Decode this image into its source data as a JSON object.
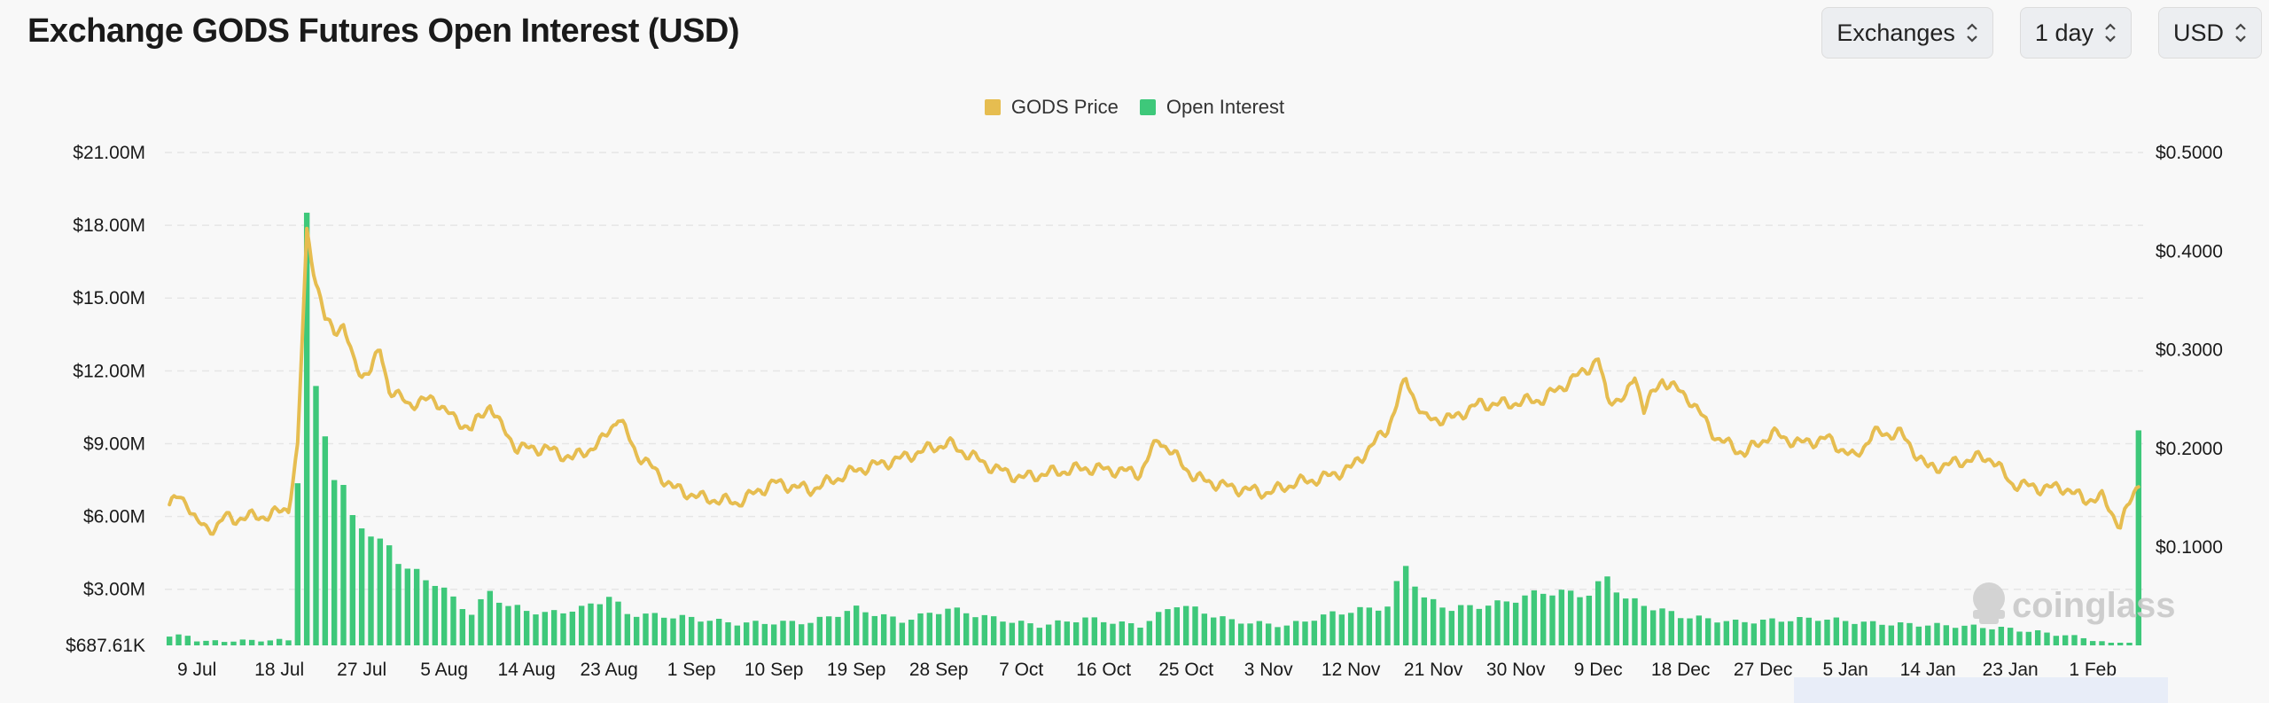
{
  "header": {
    "title": "Exchange GODS Futures Open Interest (USD)",
    "controls": [
      {
        "label": "Exchanges",
        "name": "exchanges-select"
      },
      {
        "label": "1 day",
        "name": "interval-select"
      },
      {
        "label": "USD",
        "name": "currency-select"
      }
    ]
  },
  "watermark": "coinglass",
  "colors": {
    "price": "#e6bd50",
    "oi": "#3ec87a",
    "grid": "#e6e6e6"
  },
  "chart_data": {
    "type": "bar",
    "title": "Exchange GODS Futures Open Interest (USD)",
    "legend": {
      "placement": "top-center"
    },
    "series": [
      {
        "name": "GODS Price",
        "type": "line",
        "axis": "right"
      },
      {
        "name": "Open Interest",
        "type": "bar",
        "axis": "left"
      }
    ],
    "left_axis": {
      "ticks": [
        "$687.61K",
        "$3.00M",
        "$6.00M",
        "$9.00M",
        "$12.00M",
        "$15.00M",
        "$18.00M",
        "$21.00M"
      ],
      "tick_values": [
        687610,
        3000000,
        6000000,
        9000000,
        12000000,
        15000000,
        18000000,
        21000000
      ],
      "ylim": [
        687610,
        21000000
      ]
    },
    "right_axis": {
      "ticks": [
        "$0.1000",
        "$0.2000",
        "$0.3000",
        "$0.4000",
        "$0.5000"
      ],
      "tick_values": [
        0.1,
        0.2,
        0.3,
        0.4,
        0.5
      ],
      "ylim": [
        0.0,
        0.5
      ]
    },
    "x_axis": {
      "ticks": [
        "9 Jul",
        "18 Jul",
        "27 Jul",
        "5 Aug",
        "14 Aug",
        "23 Aug",
        "1 Sep",
        "10 Sep",
        "19 Sep",
        "28 Sep",
        "7 Oct",
        "16 Oct",
        "25 Oct",
        "3 Nov",
        "12 Nov",
        "21 Nov",
        "30 Nov",
        "9 Dec",
        "18 Dec",
        "27 Dec",
        "5 Jan",
        "14 Jan",
        "23 Jan",
        "1 Feb"
      ],
      "tick_days": [
        3,
        12,
        21,
        30,
        39,
        48,
        57,
        66,
        75,
        84,
        93,
        102,
        111,
        120,
        129,
        138,
        147,
        156,
        165,
        174,
        183,
        192,
        201,
        210
      ]
    },
    "open_interest_keypoints": [
      [
        0,
        1.05
      ],
      [
        2,
        1.1
      ],
      [
        3,
        0.9
      ],
      [
        4,
        0.85
      ],
      [
        10,
        0.9
      ],
      [
        13,
        0.9
      ],
      [
        14,
        7.5
      ],
      [
        15,
        18.4
      ],
      [
        16,
        11.2
      ],
      [
        17,
        9.4
      ],
      [
        18,
        7.6
      ],
      [
        19,
        7.2
      ],
      [
        20,
        6.0
      ],
      [
        22,
        5.2
      ],
      [
        24,
        4.8
      ],
      [
        26,
        3.8
      ],
      [
        29,
        3.3
      ],
      [
        31,
        2.6
      ],
      [
        33,
        2.0
      ],
      [
        35,
        2.9
      ],
      [
        37,
        2.3
      ],
      [
        41,
        2.0
      ],
      [
        45,
        2.2
      ],
      [
        48,
        2.7
      ],
      [
        50,
        2.0
      ],
      [
        56,
        1.85
      ],
      [
        62,
        1.6
      ],
      [
        70,
        1.65
      ],
      [
        75,
        2.2
      ],
      [
        80,
        1.7
      ],
      [
        85,
        2.2
      ],
      [
        90,
        1.8
      ],
      [
        95,
        1.5
      ],
      [
        100,
        1.8
      ],
      [
        106,
        1.5
      ],
      [
        110,
        2.4
      ],
      [
        116,
        1.7
      ],
      [
        122,
        1.5
      ],
      [
        127,
        2.0
      ],
      [
        133,
        2.3
      ],
      [
        135,
        4.0
      ],
      [
        137,
        2.6
      ],
      [
        140,
        2.2
      ],
      [
        145,
        2.4
      ],
      [
        150,
        2.9
      ],
      [
        155,
        2.8
      ],
      [
        157,
        3.5
      ],
      [
        159,
        2.6
      ],
      [
        165,
        1.9
      ],
      [
        171,
        1.65
      ],
      [
        180,
        1.8
      ],
      [
        186,
        1.6
      ],
      [
        195,
        1.5
      ],
      [
        200,
        1.4
      ],
      [
        205,
        1.2
      ],
      [
        209,
        1.0
      ],
      [
        212,
        0.75
      ],
      [
        214,
        0.8
      ],
      [
        215,
        9.4
      ]
    ],
    "price_keypoints": [
      [
        0,
        0.143
      ],
      [
        1,
        0.15
      ],
      [
        2,
        0.145
      ],
      [
        3,
        0.125
      ],
      [
        4,
        0.118
      ],
      [
        5,
        0.12
      ],
      [
        6,
        0.13
      ],
      [
        7,
        0.128
      ],
      [
        8,
        0.13
      ],
      [
        11,
        0.132
      ],
      [
        13,
        0.14
      ],
      [
        14,
        0.2
      ],
      [
        15,
        0.42
      ],
      [
        16,
        0.37
      ],
      [
        17,
        0.33
      ],
      [
        18,
        0.32
      ],
      [
        19,
        0.325
      ],
      [
        20,
        0.29
      ],
      [
        21,
        0.275
      ],
      [
        22,
        0.28
      ],
      [
        23,
        0.3
      ],
      [
        24,
        0.26
      ],
      [
        26,
        0.245
      ],
      [
        29,
        0.25
      ],
      [
        31,
        0.23
      ],
      [
        33,
        0.22
      ],
      [
        35,
        0.245
      ],
      [
        36,
        0.225
      ],
      [
        38,
        0.2
      ],
      [
        41,
        0.2
      ],
      [
        44,
        0.19
      ],
      [
        47,
        0.205
      ],
      [
        49,
        0.232
      ],
      [
        51,
        0.195
      ],
      [
        55,
        0.16
      ],
      [
        58,
        0.15
      ],
      [
        62,
        0.145
      ],
      [
        66,
        0.165
      ],
      [
        70,
        0.158
      ],
      [
        73,
        0.17
      ],
      [
        75,
        0.178
      ],
      [
        78,
        0.185
      ],
      [
        80,
        0.19
      ],
      [
        83,
        0.2
      ],
      [
        85,
        0.205
      ],
      [
        90,
        0.18
      ],
      [
        93,
        0.17
      ],
      [
        96,
        0.175
      ],
      [
        100,
        0.18
      ],
      [
        103,
        0.178
      ],
      [
        106,
        0.175
      ],
      [
        108,
        0.21
      ],
      [
        112,
        0.17
      ],
      [
        116,
        0.16
      ],
      [
        120,
        0.155
      ],
      [
        123,
        0.165
      ],
      [
        126,
        0.17
      ],
      [
        129,
        0.18
      ],
      [
        131,
        0.2
      ],
      [
        133,
        0.22
      ],
      [
        135,
        0.27
      ],
      [
        137,
        0.23
      ],
      [
        140,
        0.23
      ],
      [
        143,
        0.245
      ],
      [
        146,
        0.245
      ],
      [
        150,
        0.25
      ],
      [
        154,
        0.275
      ],
      [
        156,
        0.29
      ],
      [
        157,
        0.25
      ],
      [
        159,
        0.25
      ],
      [
        160,
        0.275
      ],
      [
        161,
        0.24
      ],
      [
        163,
        0.27
      ],
      [
        166,
        0.25
      ],
      [
        169,
        0.21
      ],
      [
        172,
        0.195
      ],
      [
        175,
        0.215
      ],
      [
        178,
        0.205
      ],
      [
        181,
        0.21
      ],
      [
        184,
        0.19
      ],
      [
        186,
        0.215
      ],
      [
        189,
        0.215
      ],
      [
        192,
        0.18
      ],
      [
        195,
        0.185
      ],
      [
        197,
        0.19
      ],
      [
        199,
        0.19
      ],
      [
        201,
        0.165
      ],
      [
        204,
        0.16
      ],
      [
        207,
        0.16
      ],
      [
        209,
        0.148
      ],
      [
        211,
        0.15
      ],
      [
        213,
        0.122
      ],
      [
        215,
        0.165
      ]
    ]
  }
}
